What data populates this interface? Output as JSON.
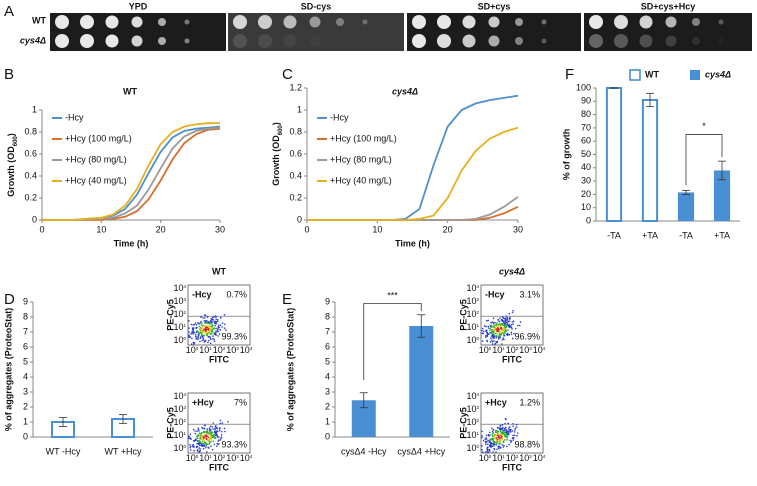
{
  "panel_labels": [
    "A",
    "B",
    "C",
    "D",
    "E",
    "F"
  ],
  "spot_assay": {
    "media": [
      "YPD",
      "SD-cys",
      "SD+cys",
      "SD+cys+Hcy"
    ],
    "strains": [
      "WT",
      "cys4Δ"
    ]
  },
  "chart_data": [
    {
      "type": "line",
      "title": "WT",
      "x_label": "Time (h)",
      "y_label": [
        "Growth (OD",
        "600",
        ")"
      ],
      "x": [
        0,
        5,
        10,
        12,
        14,
        16,
        18,
        20,
        22,
        24,
        26,
        28,
        30
      ],
      "xlim": [
        0,
        30
      ],
      "xticks": [
        0,
        10,
        20,
        30
      ],
      "ylim": [
        0,
        1
      ],
      "yticks": [
        0,
        0.2,
        0.4,
        0.6,
        0.8,
        1
      ],
      "series": [
        {
          "name": "-Hcy",
          "color": "#4f8fcc",
          "values": [
            0,
            0,
            0.02,
            0.04,
            0.1,
            0.23,
            0.43,
            0.62,
            0.75,
            0.81,
            0.83,
            0.84,
            0.85
          ]
        },
        {
          "name": "+Hcy (100 mg/L)",
          "color": "#d66f2c",
          "values": [
            0,
            0,
            0,
            0.01,
            0.03,
            0.08,
            0.19,
            0.36,
            0.55,
            0.7,
            0.78,
            0.82,
            0.83
          ]
        },
        {
          "name": "+Hcy (80 mg/L)",
          "color": "#9a9a9a",
          "values": [
            0,
            0,
            0.01,
            0.02,
            0.06,
            0.13,
            0.28,
            0.47,
            0.65,
            0.76,
            0.81,
            0.83,
            0.84
          ]
        },
        {
          "name": "+Hcy (40 mg/L)",
          "color": "#e5b21d",
          "values": [
            0,
            0,
            0.02,
            0.05,
            0.13,
            0.28,
            0.5,
            0.69,
            0.8,
            0.85,
            0.87,
            0.88,
            0.88
          ]
        }
      ]
    },
    {
      "type": "line",
      "title": "cys4Δ",
      "x_label": "Time (h)",
      "y_label": [
        "Growth (OD",
        "600",
        ")"
      ],
      "x": [
        0,
        5,
        10,
        12,
        14,
        16,
        18,
        20,
        22,
        24,
        26,
        28,
        30
      ],
      "xlim": [
        0,
        30
      ],
      "xticks": [
        0,
        10,
        20,
        30
      ],
      "ylim": [
        0,
        1.2
      ],
      "yticks": [
        0,
        0.2,
        0.4,
        0.6,
        0.8,
        1,
        1.2
      ],
      "series": [
        {
          "name": "-Hcy",
          "color": "#4f8fcc",
          "values": [
            0,
            0,
            0,
            0,
            0.01,
            0.1,
            0.5,
            0.85,
            1.0,
            1.06,
            1.09,
            1.11,
            1.13
          ]
        },
        {
          "name": "+Hcy (100 mg/L)",
          "color": "#d66f2c",
          "values": [
            0,
            0,
            0,
            0,
            0,
            0,
            0,
            0,
            0,
            0,
            0.02,
            0.06,
            0.12
          ]
        },
        {
          "name": "+Hcy (80 mg/L)",
          "color": "#9a9a9a",
          "values": [
            0,
            0,
            0,
            0,
            0,
            0,
            0,
            0,
            0,
            0.01,
            0.05,
            0.12,
            0.21
          ]
        },
        {
          "name": "+Hcy (40 mg/L)",
          "color": "#e5b21d",
          "values": [
            0,
            0,
            0,
            0,
            0,
            0.01,
            0.04,
            0.2,
            0.45,
            0.63,
            0.74,
            0.8,
            0.84
          ]
        }
      ]
    },
    {
      "type": "bar",
      "y_label": "% of growth",
      "legend": "top",
      "annotation": "*",
      "categories": [
        "-TA",
        "+TA",
        "-TA",
        "+TA"
      ],
      "ylim": [
        0,
        100
      ],
      "yticks": [
        0,
        10,
        20,
        30,
        40,
        50,
        60,
        70,
        80,
        90,
        100
      ],
      "series": [
        {
          "name": "WT",
          "color": "#4a8fd4",
          "fill": "open",
          "values": [
            100,
            91,
            null,
            null
          ],
          "errors": [
            0,
            5,
            null,
            null
          ]
        },
        {
          "name": "cys4Δ",
          "color": "#4a8fd4",
          "fill": "filled",
          "values": [
            null,
            null,
            21.5,
            38
          ],
          "errors": [
            null,
            null,
            1.5,
            7
          ]
        }
      ]
    },
    {
      "type": "bar",
      "y_label": "% of aggregates (ProteoStat)",
      "categories": [
        "WT -Hcy",
        "WT +Hcy"
      ],
      "ylim": [
        0,
        9
      ],
      "yticks": [
        0,
        1,
        2,
        3,
        4,
        5,
        6,
        7,
        8,
        9
      ],
      "color": "#4a8fd4",
      "fill": "open",
      "values": [
        1,
        1.2
      ],
      "errors": [
        0.3,
        0.3
      ]
    },
    {
      "type": "bar",
      "y_label": "% of aggregates (ProteoStat)",
      "categories": [
        "cysΔ4 -Hcy",
        "cysΔ4 +Hcy"
      ],
      "annotation": "***",
      "ylim": [
        0,
        9
      ],
      "yticks": [
        0,
        1,
        2,
        3,
        4,
        5,
        6,
        7,
        8,
        9
      ],
      "color": "#4a8fd4",
      "fill": "filled",
      "values": [
        2.45,
        7.4
      ],
      "errors": [
        0.5,
        0.75
      ]
    }
  ],
  "flow_plots": [
    {
      "title": "WT",
      "panels": [
        {
          "label": "-Hcy",
          "upper": "0.7%",
          "lower": "99.3%"
        },
        {
          "label": "+Hcy",
          "upper": "7%",
          "lower": "93.3%"
        }
      ]
    },
    {
      "title": "cys4Δ",
      "panels": [
        {
          "label": "-Hcy",
          "upper": "3.1%",
          "lower": "96.9%"
        },
        {
          "label": "+Hcy",
          "upper": "1.2%",
          "lower": "98.8%"
        }
      ]
    }
  ],
  "flow_axes": {
    "y_label": "PE-Cy5",
    "x_label": "FITC",
    "tick_base": "10",
    "tick_exponents": [
      "0",
      "1",
      "2",
      "3",
      "4"
    ]
  }
}
